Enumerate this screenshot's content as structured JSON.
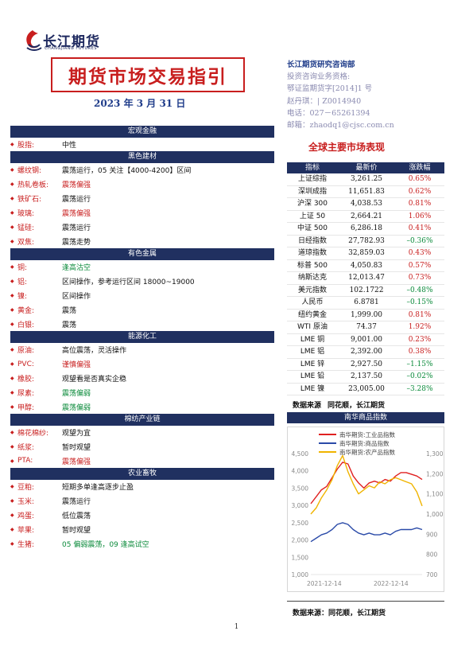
{
  "header": {
    "logo_text": "长江期货",
    "logo_sub": "CHANGJIANG FUTURES",
    "title": "期货市场交易指引",
    "date": "2023 年 3 月 31 日"
  },
  "contact": {
    "dept": "长江期货研究咨询部",
    "lines": [
      "投资咨询业务资格:",
      "鄂证监期货字[2014]1 号",
      "赵丹琪：| Z0014940",
      "电话：027－65261394",
      "邮箱：zhaodq1@cjsc.com.cn"
    ]
  },
  "left_sections": [
    {
      "title": "宏观金融",
      "rows": [
        {
          "name": "股指:",
          "view": "中性",
          "color": "black"
        }
      ]
    },
    {
      "title": "黑色建材",
      "rows": [
        {
          "name": "螺纹钢:",
          "view": "震荡运行，05 关注【4000-4200】区间",
          "color": "black"
        },
        {
          "name": "热轧卷板:",
          "view": "震荡偏强",
          "color": "red"
        },
        {
          "name": "铁矿石:",
          "view": "震荡运行",
          "color": "black"
        },
        {
          "name": "玻璃:",
          "view": "震荡偏强",
          "color": "red"
        },
        {
          "name": "锰硅:",
          "view": "震荡运行",
          "color": "black"
        },
        {
          "name": "双焦:",
          "view": "震荡走势",
          "color": "black"
        }
      ]
    },
    {
      "title": "有色金属",
      "rows": [
        {
          "name": "铜:",
          "view": "逢高沽空",
          "color": "green"
        },
        {
          "name": "铝:",
          "view": "区间操作，参考运行区间 18000~19000",
          "color": "black"
        },
        {
          "name": "镍:",
          "view": "区间操作",
          "color": "black"
        },
        {
          "name": "黄金:",
          "view": "震荡",
          "color": "black"
        },
        {
          "name": "白银:",
          "view": "震荡",
          "color": "black"
        }
      ]
    },
    {
      "title": "能源化工",
      "rows": [
        {
          "name": "原油:",
          "view": "高位震荡，灵活操作",
          "color": "black"
        },
        {
          "name": "PVC:",
          "view": "谨慎偏强",
          "color": "red"
        },
        {
          "name": "橡胶:",
          "view": "观望看是否真实企稳",
          "color": "black"
        },
        {
          "name": "尿素:",
          "view": "震荡偏弱",
          "color": "green"
        },
        {
          "name": "甲醇:",
          "view": "震荡偏弱",
          "color": "green"
        }
      ]
    },
    {
      "title": "棉纺产业链",
      "rows": [
        {
          "name": "棉花棉纱:",
          "view": "观望为宜",
          "color": "black"
        },
        {
          "name": "纸浆:",
          "view": "暂时观望",
          "color": "black"
        },
        {
          "name": "PTA:",
          "view": "震荡偏强",
          "color": "red"
        }
      ]
    },
    {
      "title": "农业畜牧",
      "rows": [
        {
          "name": "豆粕:",
          "view": "短期多单逢高逐步止盈",
          "color": "black"
        },
        {
          "name": "玉米:",
          "view": "震荡运行",
          "color": "black"
        },
        {
          "name": "鸡蛋:",
          "view": "低位震荡",
          "color": "black"
        },
        {
          "name": "苹果:",
          "view": "暂时观望",
          "color": "black"
        },
        {
          "name": "生猪:",
          "view": "05 偏弱震荡，09 逢高试空",
          "color": "green"
        }
      ]
    }
  ],
  "global": {
    "title": "全球主要市场表现",
    "headers": [
      "指标",
      "最新价",
      "涨跌幅"
    ],
    "rows": [
      [
        "上证综指",
        "3,261.25",
        "0.65%"
      ],
      [
        "深圳成指",
        "11,651.83",
        "0.62%"
      ],
      [
        "沪深 300",
        "4,038.53",
        "0.81%"
      ],
      [
        "上证 50",
        "2,664.21",
        "1.06%"
      ],
      [
        "中证 500",
        "6,286.18",
        "0.41%"
      ],
      [
        "日经指数",
        "27,782.93",
        "–0.36%"
      ],
      [
        "道琼指数",
        "32,859.03",
        "0.43%"
      ],
      [
        "标普 500",
        "4,050.83",
        "0.57%"
      ],
      [
        "纳斯达克",
        "12,013.47",
        "0.73%"
      ],
      [
        "美元指数",
        "102.1722",
        "–0.48%"
      ],
      [
        "人民币",
        "6.8781",
        "–0.15%"
      ],
      [
        "纽约黄金",
        "1,999.00",
        "0.81%"
      ],
      [
        "WTI 原油",
        "74.37",
        "1.92%"
      ],
      [
        "LME 铜",
        "9,001.00",
        "0.23%"
      ],
      [
        "LME 铝",
        "2,392.00",
        "0.38%"
      ],
      [
        "LME 锌",
        "2,927.50",
        "–1.15%"
      ],
      [
        "LME 铅",
        "2,137.50",
        "–0.02%"
      ],
      [
        "LME 镍",
        "23,005.00",
        "–3.28%"
      ]
    ],
    "source_label": "数据来源",
    "source_value": "同花顺，长江期货"
  },
  "nanhua": {
    "title": "南华商品指数",
    "source": "数据来源：同花顺，长江期货"
  },
  "chart_data": {
    "type": "line",
    "x_ticks": [
      "2021-12-14",
      "2022-12-14"
    ],
    "left_axis": {
      "ticks": [
        "1,000",
        "1,500",
        "2,000",
        "2,500",
        "3,000",
        "3,500",
        "4,000",
        "4,500"
      ],
      "ylim": [
        1000,
        4500
      ]
    },
    "right_axis": {
      "ticks": [
        "700",
        "800",
        "900",
        "1,000",
        "1,100",
        "1,200",
        "1,300"
      ],
      "ylim": [
        700,
        1300
      ]
    },
    "series": [
      {
        "name": "南华期货:工业品指数",
        "color": "#e02020",
        "axis": "left",
        "values": [
          3050,
          3250,
          3450,
          3550,
          3800,
          4050,
          4250,
          4200,
          3850,
          3650,
          3500,
          3650,
          3700,
          3650,
          3750,
          3700,
          3850,
          3950,
          3950,
          3900,
          3850,
          3750
        ]
      },
      {
        "name": "南华期货:商品指数",
        "color": "#2a4aa8",
        "axis": "left",
        "values": [
          1950,
          2050,
          2150,
          2200,
          2300,
          2450,
          2500,
          2450,
          2300,
          2200,
          2150,
          2200,
          2150,
          2150,
          2200,
          2150,
          2250,
          2300,
          2300,
          2300,
          2350,
          2300
        ]
      },
      {
        "name": "南华期货:农产品指数",
        "color": "#f0b400",
        "axis": "right",
        "values": [
          1000,
          1030,
          1080,
          1120,
          1170,
          1240,
          1290,
          1210,
          1150,
          1100,
          1120,
          1140,
          1130,
          1160,
          1150,
          1170,
          1180,
          1170,
          1160,
          1150,
          1110,
          1040
        ]
      }
    ]
  },
  "page_number": "1"
}
